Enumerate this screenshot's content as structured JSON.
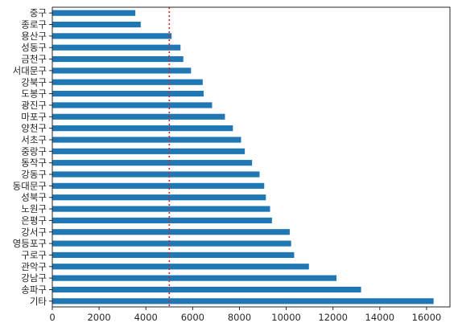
{
  "chart_data": {
    "type": "bar",
    "orientation": "horizontal",
    "categories": [
      "중구",
      "종로구",
      "용산구",
      "성동구",
      "금천구",
      "서대문구",
      "강북구",
      "도봉구",
      "광진구",
      "마포구",
      "양천구",
      "서초구",
      "중랑구",
      "동작구",
      "강동구",
      "동대문구",
      "성북구",
      "노원구",
      "은평구",
      "강서구",
      "영등포구",
      "구로구",
      "관악구",
      "강남구",
      "송파구",
      "기타"
    ],
    "values": [
      3550,
      3780,
      5100,
      5480,
      5600,
      5930,
      6430,
      6470,
      6830,
      7380,
      7720,
      8070,
      8230,
      8540,
      8860,
      9060,
      9130,
      9310,
      9390,
      10150,
      10210,
      10340,
      10970,
      12150,
      13200,
      16300
    ],
    "bar_color": "#1f77b4",
    "reference_line": {
      "value": 5000,
      "color": "#d62728",
      "style": "dotted"
    },
    "xlim": [
      0,
      17000
    ],
    "x_ticks": [
      "0",
      "2000",
      "4000",
      "6000",
      "8000",
      "10000",
      "12000",
      "14000",
      "16000"
    ],
    "x_tick_values": [
      0,
      2000,
      4000,
      6000,
      8000,
      10000,
      12000,
      14000,
      16000
    ],
    "title": "",
    "xlabel": "",
    "ylabel": "",
    "grid": false,
    "legend": "none"
  }
}
